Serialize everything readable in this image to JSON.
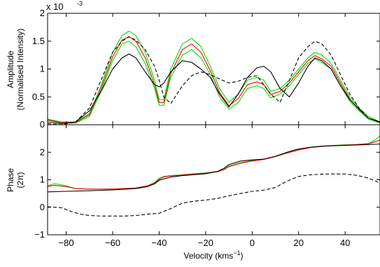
{
  "chart_data": [
    {
      "type": "line",
      "panel": "top",
      "ylabel_lines": [
        "Amplitude",
        "(Normalised Intensity)"
      ],
      "exponent_label": "x 10",
      "exponent_power": "-3",
      "xlim": [
        -88,
        55
      ],
      "ylim": [
        0,
        2
      ],
      "y_unit_scale": 0.001,
      "yticks": [
        0,
        0.5,
        1,
        1.5,
        2
      ],
      "ytick_labels": [
        "0",
        "0.5",
        "1",
        "1.5",
        "2"
      ],
      "xticks": [
        -80,
        -60,
        -40,
        -20,
        0,
        20,
        40
      ],
      "grid": false,
      "series": [
        {
          "color": "#00dd00",
          "style": "solid",
          "x": [
            -88,
            -82,
            -76,
            -70,
            -65,
            -60,
            -56,
            -53,
            -50,
            -46,
            -42,
            -40,
            -38,
            -35,
            -30,
            -26,
            -22,
            -18,
            -14,
            -10,
            -6,
            -2,
            2,
            5,
            8,
            12,
            16,
            20,
            24,
            27,
            30,
            34,
            38,
            42,
            46,
            50,
            55
          ],
          "y": [
            0.1,
            0.05,
            0.05,
            0.2,
            0.7,
            1.3,
            1.6,
            1.68,
            1.6,
            1.3,
            0.8,
            0.45,
            0.45,
            1,
            1.45,
            1.55,
            1.4,
            1.05,
            0.65,
            0.4,
            0.55,
            0.8,
            0.85,
            0.8,
            0.6,
            0.65,
            0.8,
            1,
            1.2,
            1.3,
            1.25,
            1.1,
            0.8,
            0.5,
            0.3,
            0.15,
            0.05
          ]
        },
        {
          "color": "#00dd00",
          "style": "solid",
          "x": [
            -88,
            -82,
            -76,
            -70,
            -65,
            -60,
            -56,
            -53,
            -50,
            -46,
            -42,
            -40,
            -38,
            -35,
            -30,
            -26,
            -22,
            -18,
            -14,
            -10,
            -6,
            -2,
            2,
            5,
            8,
            12,
            16,
            20,
            24,
            27,
            30,
            34,
            38,
            42,
            46,
            50,
            55
          ],
          "y": [
            0.08,
            0.03,
            0.03,
            0.15,
            0.6,
            1.15,
            1.45,
            1.5,
            1.4,
            1.1,
            0.65,
            0.35,
            0.35,
            0.85,
            1.25,
            1.35,
            1.2,
            0.9,
            0.5,
            0.28,
            0.4,
            0.65,
            0.7,
            0.65,
            0.48,
            0.55,
            0.7,
            0.9,
            1.1,
            1.18,
            1.12,
            1,
            0.7,
            0.42,
            0.25,
            0.1,
            0.03
          ]
        },
        {
          "color": "#ff0000",
          "style": "solid",
          "x": [
            -88,
            -82,
            -76,
            -70,
            -65,
            -60,
            -56,
            -53,
            -50,
            -46,
            -42,
            -40,
            -38,
            -35,
            -30,
            -26,
            -22,
            -18,
            -14,
            -10,
            -6,
            -2,
            2,
            5,
            8,
            12,
            16,
            20,
            24,
            27,
            30,
            34,
            38,
            42,
            46,
            50,
            55
          ],
          "y": [
            0.09,
            0.04,
            0.04,
            0.18,
            0.65,
            1.22,
            1.52,
            1.58,
            1.5,
            1.2,
            0.72,
            0.4,
            0.4,
            0.92,
            1.35,
            1.45,
            1.3,
            0.97,
            0.58,
            0.34,
            0.47,
            0.72,
            0.77,
            0.72,
            0.54,
            0.6,
            0.75,
            0.95,
            1.15,
            1.24,
            1.18,
            1.05,
            0.75,
            0.46,
            0.27,
            0.12,
            0.04
          ]
        },
        {
          "color": "#000000",
          "style": "solid",
          "x": [
            -88,
            -82,
            -76,
            -70,
            -65,
            -60,
            -56,
            -53,
            -50,
            -46,
            -42,
            -40,
            -38,
            -35,
            -30,
            -26,
            -22,
            -18,
            -14,
            -10,
            -6,
            -2,
            2,
            5,
            8,
            12,
            16,
            20,
            24,
            27,
            30,
            34,
            38,
            42,
            46,
            50,
            55
          ],
          "y": [
            0.05,
            0.02,
            0.05,
            0.25,
            0.6,
            1,
            1.2,
            1.27,
            1.2,
            0.95,
            0.72,
            0.68,
            0.75,
            0.95,
            1.15,
            1.12,
            1,
            0.85,
            0.55,
            0.32,
            0.55,
            0.85,
            1.02,
            1.05,
            0.95,
            0.65,
            0.5,
            0.75,
            1.05,
            1.2,
            1.15,
            1,
            0.7,
            0.45,
            0.28,
            0.12,
            0.05
          ]
        },
        {
          "color": "#000000",
          "style": "dashed",
          "x": [
            -88,
            -82,
            -76,
            -70,
            -65,
            -60,
            -56,
            -53,
            -50,
            -46,
            -42,
            -40,
            -38,
            -35,
            -30,
            -26,
            -22,
            -18,
            -14,
            -10,
            -6,
            -2,
            2,
            5,
            8,
            12,
            16,
            20,
            24,
            27,
            30,
            34,
            38,
            42,
            46,
            50,
            55
          ],
          "y": [
            0.02,
            0,
            0.05,
            0.3,
            0.8,
            1.3,
            1.5,
            1.58,
            1.52,
            1.35,
            1.05,
            0.8,
            0.5,
            0.38,
            0.7,
            0.88,
            0.95,
            0.9,
            0.82,
            0.75,
            0.78,
            0.85,
            0.88,
            0.72,
            0.55,
            0.4,
            0.8,
            1.2,
            1.4,
            1.5,
            1.45,
            1.25,
            0.9,
            0.55,
            0.3,
            0.12,
            0.04
          ]
        }
      ]
    },
    {
      "type": "line",
      "panel": "bottom",
      "ylabel_lines": [
        "Phase",
        "(2π)"
      ],
      "xlabel_main": "Velocity (kms",
      "xlabel_power": "−1",
      "xlabel_close": ")",
      "xlim": [
        -88,
        55
      ],
      "ylim": [
        -1,
        3
      ],
      "yticks": [
        -1,
        0,
        1,
        2
      ],
      "ytick_labels": [
        "−1",
        "0",
        "1",
        "2"
      ],
      "xticks": [
        -80,
        -60,
        -40,
        -20,
        0,
        20,
        40
      ],
      "xtick_labels": [
        "−80",
        "−60",
        "−40",
        "−20",
        "0",
        "20",
        "40"
      ],
      "grid": false,
      "series": [
        {
          "color": "#00dd00",
          "style": "solid",
          "x": [
            -88,
            -85,
            -80,
            -76,
            -70,
            -60,
            -50,
            -45,
            -42,
            -40,
            -38,
            -35,
            -30,
            -25,
            -20,
            -15,
            -12,
            -10,
            -5,
            0,
            5,
            10,
            15,
            20,
            25,
            30,
            35,
            40,
            45,
            50,
            53,
            55
          ],
          "y": [
            0.78,
            0.86,
            0.78,
            0.68,
            0.66,
            0.66,
            0.7,
            0.78,
            0.9,
            1.05,
            1.12,
            1.15,
            1.18,
            1.22,
            1.25,
            1.3,
            1.38,
            1.5,
            1.62,
            1.7,
            1.75,
            1.85,
            1.98,
            2.1,
            2.18,
            2.22,
            2.25,
            2.27,
            2.28,
            2.32,
            2.45,
            2.6
          ]
        },
        {
          "color": "#ff0000",
          "style": "solid",
          "x": [
            -88,
            -85,
            -80,
            -76,
            -70,
            -60,
            -50,
            -45,
            -42,
            -40,
            -38,
            -35,
            -30,
            -25,
            -20,
            -15,
            -12,
            -10,
            -5,
            0,
            5,
            10,
            15,
            20,
            25,
            30,
            35,
            40,
            45,
            50,
            53,
            55
          ],
          "y": [
            0.76,
            0.8,
            0.75,
            0.68,
            0.66,
            0.66,
            0.7,
            0.78,
            0.88,
            1.02,
            1.1,
            1.14,
            1.17,
            1.21,
            1.24,
            1.29,
            1.37,
            1.48,
            1.6,
            1.68,
            1.74,
            1.84,
            1.97,
            2.08,
            2.17,
            2.21,
            2.24,
            2.26,
            2.28,
            2.31,
            2.38,
            2.45
          ]
        },
        {
          "color": "#000000",
          "style": "solid",
          "x": [
            -88,
            -80,
            -70,
            -60,
            -50,
            -45,
            -42,
            -40,
            -35,
            -30,
            -20,
            -15,
            -12,
            -10,
            -5,
            0,
            5,
            10,
            15,
            20,
            25,
            30,
            40,
            50,
            55
          ],
          "y": [
            0.56,
            0.58,
            0.6,
            0.63,
            0.68,
            0.75,
            0.85,
            0.98,
            1.1,
            1.15,
            1.22,
            1.3,
            1.42,
            1.55,
            1.68,
            1.72,
            1.75,
            1.85,
            2,
            2.12,
            2.18,
            2.22,
            2.25,
            2.28,
            2.3
          ]
        },
        {
          "color": "#000000",
          "style": "dashed",
          "x": [
            -88,
            -82,
            -78,
            -74,
            -70,
            -65,
            -60,
            -55,
            -50,
            -45,
            -40,
            -35,
            -30,
            -25,
            -20,
            -15,
            -10,
            -5,
            0,
            5,
            10,
            15,
            20,
            25,
            30,
            35,
            40,
            45,
            50,
            55
          ],
          "y": [
            0.02,
            -0.02,
            -0.15,
            -0.25,
            -0.3,
            -0.32,
            -0.32,
            -0.32,
            -0.3,
            -0.25,
            -0.22,
            -0.05,
            0.15,
            0.22,
            0.26,
            0.32,
            0.42,
            0.5,
            0.58,
            0.62,
            0.72,
            0.95,
            1.12,
            1.18,
            1.2,
            1.21,
            1.21,
            1.16,
            1.06,
            0.88
          ]
        }
      ]
    }
  ]
}
